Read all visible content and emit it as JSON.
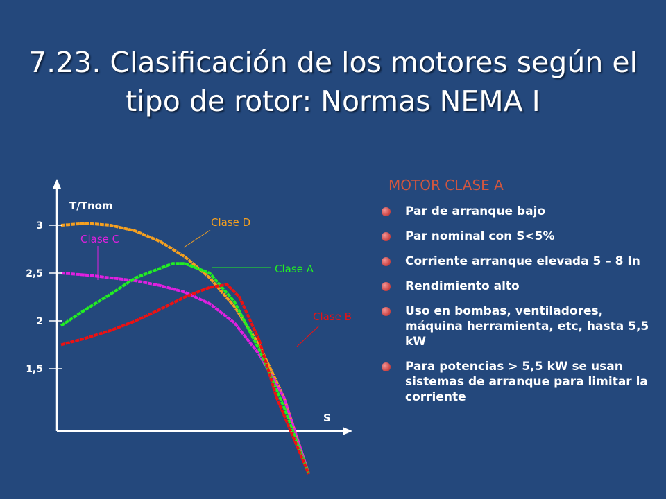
{
  "slide": {
    "title_line1": "7.23. Clasificación de los motores según el",
    "title_line2": "tipo de rotor: Normas NEMA I"
  },
  "motor": {
    "heading": "MOTOR CLASE A",
    "bullets": [
      "Par de arranque bajo",
      "Par nominal con S<5%",
      "Corriente arranque elevada 5 – 8 In",
      "Rendimiento alto",
      "Uso en bombas, ventiladores, máquina herramienta, etc, hasta 5,5 kW",
      "Para potencias > 5,5 kW se usan sistemas de arranque para limitar la corriente"
    ],
    "bullet_color": "#d65555"
  },
  "chart_data": {
    "type": "line",
    "ylabel": "T/Tnom",
    "xlabel": "S",
    "yticks": [
      "3",
      "2,5",
      "2",
      "1,5"
    ],
    "ytick_values": [
      3,
      2.5,
      2,
      1.5
    ],
    "series": [
      {
        "name": "Clase D",
        "color": "#f5a020",
        "points": [
          [
            0,
            3.0
          ],
          [
            0.1,
            3.02
          ],
          [
            0.2,
            3.0
          ],
          [
            0.3,
            2.94
          ],
          [
            0.4,
            2.83
          ],
          [
            0.5,
            2.67
          ],
          [
            0.6,
            2.45
          ],
          [
            0.7,
            2.15
          ],
          [
            0.8,
            1.75
          ],
          [
            0.9,
            1.2
          ],
          [
            1.0,
            0.4
          ]
        ]
      },
      {
        "name": "Clase C",
        "color": "#e020e0",
        "points": [
          [
            0,
            2.5
          ],
          [
            0.1,
            2.48
          ],
          [
            0.2,
            2.45
          ],
          [
            0.3,
            2.42
          ],
          [
            0.4,
            2.37
          ],
          [
            0.5,
            2.3
          ],
          [
            0.6,
            2.18
          ],
          [
            0.7,
            1.98
          ],
          [
            0.8,
            1.65
          ],
          [
            0.9,
            1.2
          ],
          [
            1.0,
            0.4
          ]
        ]
      },
      {
        "name": "Clase A",
        "color": "#22ee22",
        "points": [
          [
            0,
            1.95
          ],
          [
            0.1,
            2.12
          ],
          [
            0.2,
            2.28
          ],
          [
            0.3,
            2.45
          ],
          [
            0.45,
            2.6
          ],
          [
            0.5,
            2.6
          ],
          [
            0.6,
            2.5
          ],
          [
            0.7,
            2.2
          ],
          [
            0.8,
            1.7
          ],
          [
            0.9,
            1.1
          ],
          [
            1.0,
            0.4
          ]
        ]
      },
      {
        "name": "Clase B",
        "color": "#ee1111",
        "points": [
          [
            0,
            1.75
          ],
          [
            0.1,
            1.82
          ],
          [
            0.2,
            1.9
          ],
          [
            0.3,
            2.0
          ],
          [
            0.4,
            2.12
          ],
          [
            0.5,
            2.25
          ],
          [
            0.6,
            2.35
          ],
          [
            0.67,
            2.38
          ],
          [
            0.72,
            2.25
          ],
          [
            0.8,
            1.8
          ],
          [
            0.87,
            1.2
          ],
          [
            1.0,
            0.4
          ]
        ]
      }
    ],
    "annotations": [
      {
        "text": "Clase D",
        "color": "#f5a020"
      },
      {
        "text": "Clase C",
        "color": "#e020e0"
      },
      {
        "text": "Clase A",
        "color": "#22ee22"
      },
      {
        "text": "Clase B",
        "color": "#ee1111"
      }
    ],
    "legend": "none",
    "grid": false
  }
}
